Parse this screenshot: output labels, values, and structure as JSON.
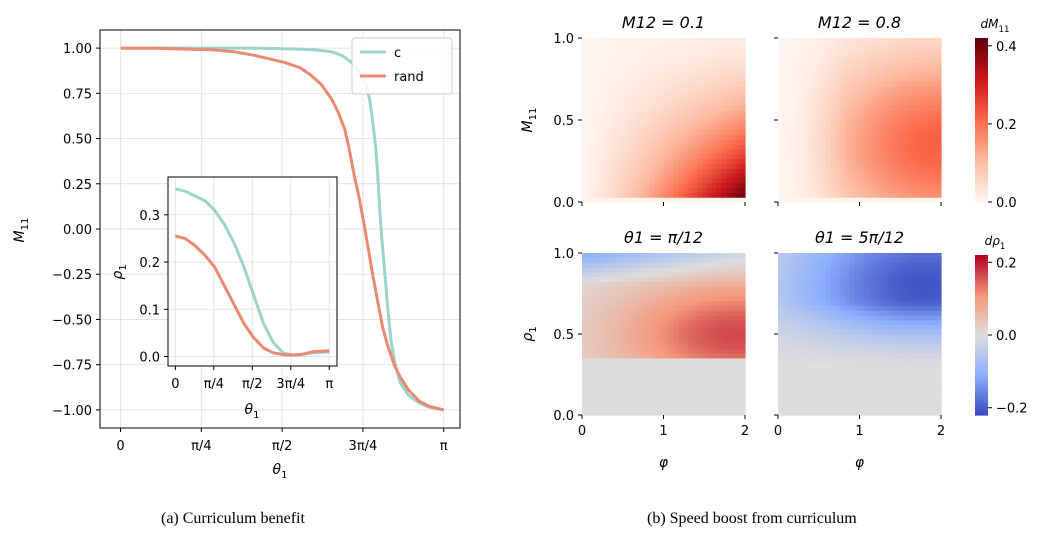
{
  "captions": {
    "a": "(a) Curriculum benefit",
    "b": "(b) Speed boost from curriculum"
  },
  "chart_data": [
    {
      "type": "line",
      "panel": "a",
      "xlabel": "θ1",
      "ylabel": "M11",
      "xlim": [
        -0.2,
        3.3
      ],
      "ylim": [
        -1.1,
        1.1
      ],
      "xticks": [
        0,
        0.7854,
        1.5708,
        2.3562,
        3.1416
      ],
      "xtick_labels": [
        "0",
        "π/4",
        "π/2",
        "3π/4",
        "π"
      ],
      "yticks": [
        1.0,
        0.75,
        0.5,
        0.25,
        0.0,
        -0.25,
        -0.5,
        -0.75,
        -1.0
      ],
      "ytick_labels": [
        "1.00",
        "0.75",
        "0.50",
        "0.25",
        "0.00",
        "−0.25",
        "−0.50",
        "−0.75",
        "−1.00"
      ],
      "grid": true,
      "legend": "top-right",
      "series": [
        {
          "name": "c",
          "color": "#9bd4c8",
          "points": [
            [
              0,
              1.0
            ],
            [
              0.4,
              1.0
            ],
            [
              0.8,
              1.0
            ],
            [
              1.2,
              1.0
            ],
            [
              1.5,
              0.998
            ],
            [
              1.7,
              0.995
            ],
            [
              1.9,
              0.99
            ],
            [
              2.05,
              0.98
            ],
            [
              2.15,
              0.96
            ],
            [
              2.25,
              0.92
            ],
            [
              2.32,
              0.87
            ],
            [
              2.38,
              0.8
            ],
            [
              2.42,
              0.72
            ],
            [
              2.45,
              0.6
            ],
            [
              2.48,
              0.45
            ],
            [
              2.5,
              0.3
            ],
            [
              2.52,
              0.1
            ],
            [
              2.54,
              -0.05
            ],
            [
              2.57,
              -0.25
            ],
            [
              2.6,
              -0.45
            ],
            [
              2.63,
              -0.62
            ],
            [
              2.67,
              -0.75
            ],
            [
              2.72,
              -0.85
            ],
            [
              2.8,
              -0.92
            ],
            [
              2.9,
              -0.96
            ],
            [
              3.0,
              -0.985
            ],
            [
              3.1416,
              -1.0
            ]
          ]
        },
        {
          "name": "rand",
          "color": "#ea8a72",
          "points": [
            [
              0,
              1.0
            ],
            [
              0.3,
              1.0
            ],
            [
              0.6,
              0.995
            ],
            [
              0.9,
              0.99
            ],
            [
              1.1,
              0.98
            ],
            [
              1.3,
              0.96
            ],
            [
              1.45,
              0.94
            ],
            [
              1.6,
              0.92
            ],
            [
              1.75,
              0.89
            ],
            [
              1.85,
              0.85
            ],
            [
              1.95,
              0.8
            ],
            [
              2.05,
              0.72
            ],
            [
              2.12,
              0.64
            ],
            [
              2.18,
              0.55
            ],
            [
              2.22,
              0.45
            ],
            [
              2.27,
              0.3
            ],
            [
              2.32,
              0.17
            ],
            [
              2.36,
              0.05
            ],
            [
              2.4,
              -0.08
            ],
            [
              2.45,
              -0.25
            ],
            [
              2.5,
              -0.4
            ],
            [
              2.55,
              -0.55
            ],
            [
              2.6,
              -0.65
            ],
            [
              2.66,
              -0.75
            ],
            [
              2.72,
              -0.82
            ],
            [
              2.8,
              -0.89
            ],
            [
              2.9,
              -0.95
            ],
            [
              3.0,
              -0.98
            ],
            [
              3.1416,
              -1.0
            ]
          ]
        }
      ],
      "inset": {
        "xlabel": "θ1",
        "ylabel": "ρ1",
        "xlim": [
          -0.15,
          3.3
        ],
        "ylim": [
          -0.02,
          0.38
        ],
        "xticks": [
          0,
          0.7854,
          1.5708,
          2.3562,
          3.1416
        ],
        "xtick_labels": [
          "0",
          "π/4",
          "π/2",
          "3π/4",
          "π"
        ],
        "yticks": [
          0.0,
          0.1,
          0.2,
          0.3
        ],
        "ytick_labels": [
          "0.0",
          "0.1",
          "0.2",
          "0.3"
        ],
        "grid": true,
        "series": [
          {
            "name": "c",
            "color": "#9bd4c8",
            "points": [
              [
                0,
                0.355
              ],
              [
                0.2,
                0.35
              ],
              [
                0.4,
                0.34
              ],
              [
                0.6,
                0.33
              ],
              [
                0.8,
                0.31
              ],
              [
                1.0,
                0.28
              ],
              [
                1.2,
                0.24
              ],
              [
                1.4,
                0.19
              ],
              [
                1.6,
                0.13
              ],
              [
                1.8,
                0.07
              ],
              [
                2.0,
                0.03
              ],
              [
                2.2,
                0.008
              ],
              [
                2.4,
                0.003
              ],
              [
                2.6,
                0.005
              ],
              [
                2.8,
                0.008
              ],
              [
                3.1416,
                0.01
              ]
            ]
          },
          {
            "name": "rand",
            "color": "#ea8a72",
            "points": [
              [
                0,
                0.255
              ],
              [
                0.2,
                0.25
              ],
              [
                0.4,
                0.235
              ],
              [
                0.6,
                0.215
              ],
              [
                0.8,
                0.19
              ],
              [
                1.0,
                0.15
              ],
              [
                1.2,
                0.11
              ],
              [
                1.4,
                0.07
              ],
              [
                1.6,
                0.04
              ],
              [
                1.8,
                0.018
              ],
              [
                2.0,
                0.008
              ],
              [
                2.2,
                0.004
              ],
              [
                2.4,
                0.003
              ],
              [
                2.6,
                0.005
              ],
              [
                2.8,
                0.01
              ],
              [
                3.1416,
                0.012
              ]
            ]
          }
        ]
      }
    },
    {
      "type": "heatmap",
      "panel": "b",
      "rows": [
        {
          "ylabel": "M11",
          "yticks": [
            0.0,
            0.5,
            1.0
          ],
          "ytick_labels": [
            "0.0",
            "0.5",
            "1.0"
          ],
          "ylim": [
            0,
            1
          ],
          "colormap": "Reds",
          "colorbar": {
            "label": "dM11",
            "ticks": [
              0.0,
              0.2,
              0.4
            ],
            "tick_labels": [
              "0.0",
              "0.2",
              "0.4"
            ],
            "vmin": 0.0,
            "vmax": 0.42
          },
          "panels": [
            {
              "title": "M12 = 0.1",
              "peak": [
                2.0,
                0.0
              ],
              "max": 0.42
            },
            {
              "title": "M12 = 0.8",
              "peak": [
                1.9,
                0.35
              ],
              "max": 0.22
            }
          ]
        },
        {
          "ylabel": "ρ1",
          "yticks": [
            0.0,
            0.5,
            1.0
          ],
          "ytick_labels": [
            "0.0",
            "0.5",
            "1.0"
          ],
          "ylim": [
            0,
            1
          ],
          "colormap": "coolwarm",
          "colorbar": {
            "label": "dρ1",
            "ticks": [
              -0.2,
              0.0,
              0.2
            ],
            "tick_labels": [
              "−0.2",
              "0.0",
              "0.2"
            ],
            "vmin": -0.22,
            "vmax": 0.22
          },
          "panels": [
            {
              "title": "θ1 = π/12",
              "peak": [
                1.85,
                0.5
              ],
              "max": 0.16
            },
            {
              "title": "θ1 = 5π/12",
              "peak": [
                1.8,
                0.8
              ],
              "max": -0.2
            }
          ]
        }
      ],
      "xlabel": "φ",
      "xticks": [
        0,
        1,
        2
      ],
      "xtick_labels": [
        "0",
        "1",
        "2"
      ],
      "xlim": [
        0,
        2
      ]
    }
  ]
}
